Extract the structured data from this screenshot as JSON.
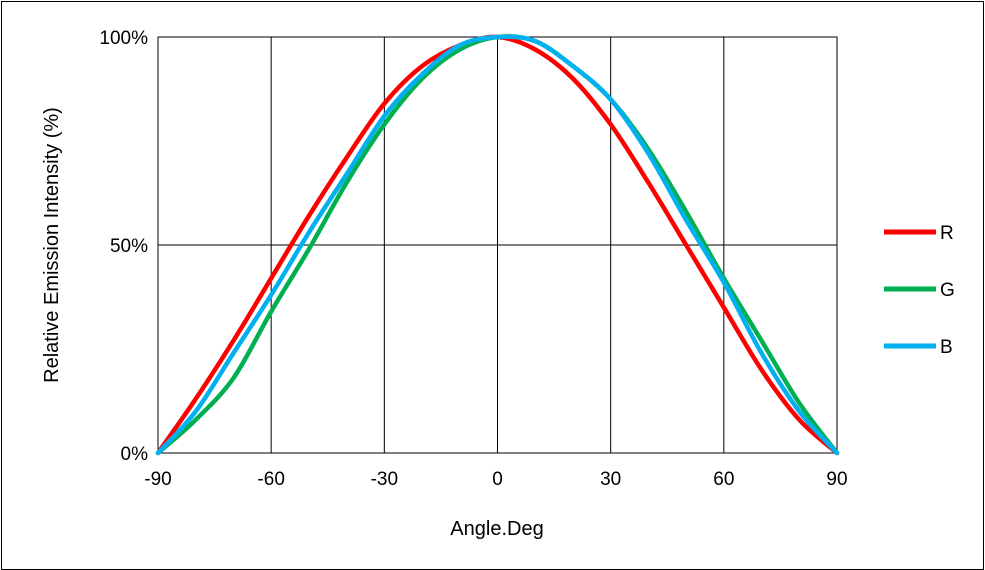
{
  "chart_data": {
    "type": "line",
    "title": "",
    "xlabel": "Angle.Deg",
    "ylabel": "Relative Emission Intensity (%)",
    "xlim": [
      -90,
      90
    ],
    "ylim": [
      0,
      100
    ],
    "x_ticks": [
      -90,
      -60,
      -30,
      0,
      30,
      60,
      90
    ],
    "x_tick_labels": [
      "-90",
      "-60",
      "-30",
      "0",
      "30",
      "60",
      "90"
    ],
    "y_ticks": [
      0,
      50,
      100
    ],
    "y_tick_labels": [
      "0%",
      "50%",
      "100%"
    ],
    "grid": true,
    "legend_position": "right",
    "x": [
      -90,
      -80,
      -70,
      -60,
      -50,
      -40,
      -30,
      -20,
      -10,
      0,
      10,
      20,
      30,
      40,
      50,
      60,
      70,
      80,
      90
    ],
    "series": [
      {
        "name": "R",
        "color": "#ff0000",
        "values": [
          0,
          13,
          27,
          42,
          57,
          71,
          84,
          93,
          98,
          100,
          97,
          90,
          79,
          65,
          50,
          35,
          20,
          8,
          0
        ]
      },
      {
        "name": "G",
        "color": "#00b050",
        "values": [
          0,
          8,
          18,
          34,
          49,
          65,
          79,
          90,
          97,
          100,
          99,
          93,
          85,
          73,
          58,
          42,
          27,
          12,
          0
        ]
      },
      {
        "name": "B",
        "color": "#00b0f0",
        "values": [
          0,
          10,
          24,
          38,
          53,
          67,
          81,
          91,
          98,
          100,
          99,
          93,
          85,
          72,
          56,
          41,
          24,
          10,
          0
        ]
      }
    ]
  }
}
